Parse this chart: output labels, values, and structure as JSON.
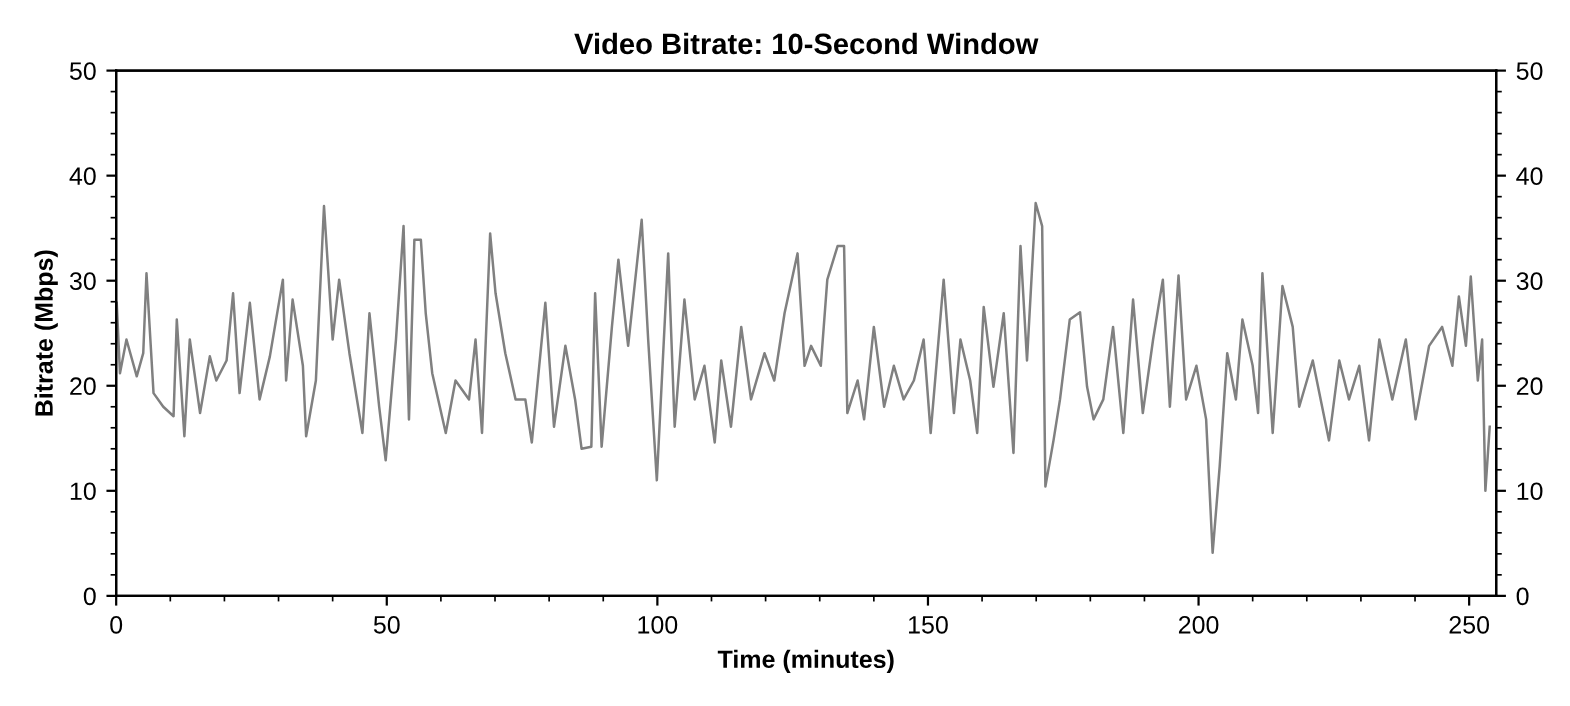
{
  "chart_data": {
    "type": "line",
    "title": "Video Bitrate: 10-Second Window",
    "xlabel": "Time (minutes)",
    "ylabel": "Bitrate (Mbps)",
    "xlim": [
      0,
      255
    ],
    "xticks": [
      0,
      50,
      100,
      150,
      200,
      250
    ],
    "ylim": [
      0,
      50
    ],
    "yticks": [
      0,
      10,
      20,
      30,
      40,
      50
    ],
    "y2lim": [
      0,
      50
    ],
    "y2ticks": [
      0,
      10,
      20,
      30,
      40,
      50
    ],
    "grid": false,
    "legend": false,
    "marker": "none",
    "line_style": "solid",
    "series": [
      {
        "color": "#808080",
        "x": [
          0.1,
          0.7,
          1.9,
          3.8,
          5.0,
          5.6,
          6.9,
          8.7,
          10.6,
          11.2,
          12.6,
          13.6,
          15.5,
          17.3,
          18.5,
          20.4,
          21.6,
          22.8,
          24.7,
          26.5,
          28.4,
          30.8,
          31.4,
          32.6,
          34.5,
          35.1,
          36.9,
          38.4,
          40.0,
          41.2,
          43.1,
          45.5,
          46.8,
          48.6,
          49.8,
          51.7,
          53.1,
          54.1,
          55.1,
          56.3,
          57.2,
          58.4,
          60.9,
          62.7,
          65.2,
          66.4,
          67.6,
          69.1,
          70.1,
          71.9,
          73.8,
          75.6,
          76.8,
          79.3,
          80.9,
          83.0,
          84.8,
          86.0,
          87.8,
          88.5,
          89.7,
          91.6,
          92.8,
          94.6,
          97.1,
          98.3,
          99.9,
          102.0,
          103.2,
          105.0,
          106.9,
          108.7,
          110.6,
          111.8,
          113.6,
          115.5,
          117.3,
          119.8,
          121.6,
          123.5,
          125.9,
          127.2,
          128.4,
          130.2,
          131.4,
          133.3,
          134.5,
          135.1,
          137.0,
          138.2,
          140.0,
          141.9,
          143.7,
          145.5,
          147.4,
          149.2,
          150.5,
          152.9,
          154.8,
          156.0,
          157.8,
          159.1,
          160.3,
          162.1,
          164.0,
          165.8,
          167.1,
          168.3,
          169.9,
          171.1,
          171.7,
          173.2,
          174.4,
          176.2,
          178.1,
          179.4,
          180.6,
          182.4,
          184.2,
          186.1,
          187.9,
          189.7,
          191.6,
          193.4,
          194.7,
          196.3,
          197.7,
          199.6,
          201.4,
          202.6,
          203.9,
          205.3,
          206.9,
          208.1,
          210.0,
          211.0,
          211.8,
          213.7,
          215.5,
          217.4,
          218.6,
          221.1,
          224.1,
          226.0,
          227.8,
          229.7,
          231.5,
          233.4,
          235.8,
          238.3,
          240.1,
          242.6,
          245.0,
          246.9,
          248.1,
          249.4,
          250.3,
          251.6,
          252.4,
          253.0,
          253.8
        ],
        "values": [
          27.9,
          21.2,
          24.4,
          20.9,
          23.1,
          30.7,
          19.3,
          18.0,
          17.1,
          26.3,
          15.2,
          24.4,
          17.4,
          22.8,
          20.5,
          22.4,
          28.8,
          19.3,
          27.9,
          18.7,
          22.8,
          30.1,
          20.5,
          28.2,
          21.9,
          15.2,
          20.5,
          37.1,
          24.4,
          30.1,
          23.1,
          15.5,
          26.9,
          18.0,
          12.9,
          24.4,
          35.2,
          16.8,
          33.9,
          33.9,
          26.9,
          21.2,
          15.5,
          20.5,
          18.7,
          24.4,
          15.5,
          34.5,
          28.8,
          23.1,
          18.7,
          18.7,
          14.6,
          27.9,
          16.1,
          23.8,
          18.7,
          14.0,
          14.2,
          28.8,
          14.2,
          25.6,
          32.0,
          23.8,
          35.8,
          24.4,
          11.0,
          32.6,
          16.1,
          28.2,
          18.7,
          21.9,
          14.6,
          22.4,
          16.1,
          25.6,
          18.7,
          23.1,
          20.5,
          26.9,
          32.6,
          21.9,
          23.8,
          21.9,
          30.1,
          33.3,
          33.3,
          17.4,
          20.5,
          16.8,
          25.6,
          18.0,
          21.9,
          18.7,
          20.5,
          24.4,
          15.5,
          30.1,
          17.4,
          24.4,
          20.5,
          15.5,
          27.5,
          19.9,
          26.9,
          13.6,
          33.3,
          22.4,
          37.4,
          35.2,
          10.4,
          14.8,
          18.7,
          26.3,
          27.0,
          19.9,
          16.8,
          18.7,
          25.6,
          15.5,
          28.2,
          17.4,
          24.4,
          30.1,
          18.0,
          30.5,
          18.7,
          21.9,
          16.8,
          4.1,
          12.3,
          23.1,
          18.7,
          26.3,
          21.9,
          17.4,
          30.7,
          15.5,
          29.5,
          25.6,
          18.0,
          22.4,
          14.8,
          22.4,
          18.7,
          21.9,
          14.8,
          24.4,
          18.7,
          24.4,
          16.8,
          23.8,
          25.6,
          21.9,
          28.5,
          23.8,
          30.4,
          20.5,
          24.4,
          10.0,
          16.1
        ]
      }
    ]
  }
}
